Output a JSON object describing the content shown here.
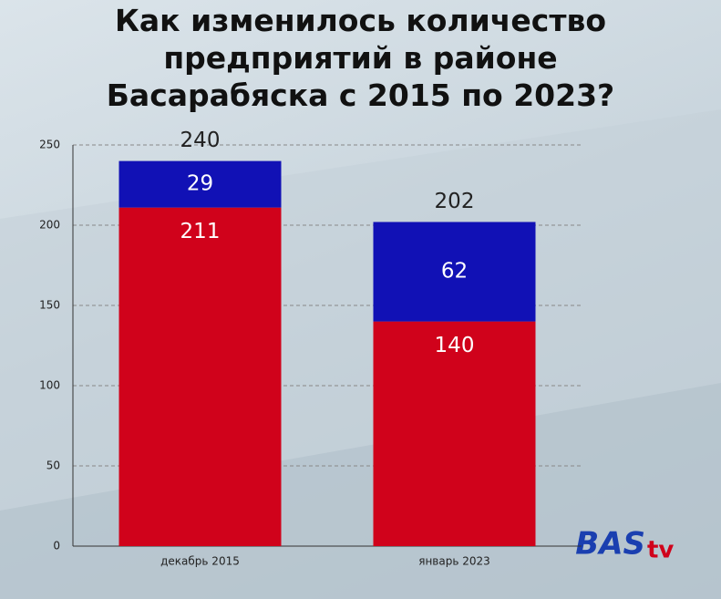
{
  "chart_data": {
    "type": "stacked_bar",
    "title": "Как изменилось количество\nпредприятий в районе\nБасарабяска с 2015 по 2023?",
    "categories": [
      "декабрь 2015",
      "январь 2023"
    ],
    "series": [
      {
        "color": "#d0021b",
        "values": [
          211,
          140
        ]
      },
      {
        "color": "#1111b5",
        "values": [
          29,
          62
        ]
      }
    ],
    "totals": [
      240,
      202
    ],
    "ylim": [
      0,
      250
    ],
    "yticks": [
      0,
      50,
      100,
      150,
      200,
      250
    ],
    "grid": true
  },
  "logo": {
    "main": "BAS",
    "suffix": "tv"
  }
}
